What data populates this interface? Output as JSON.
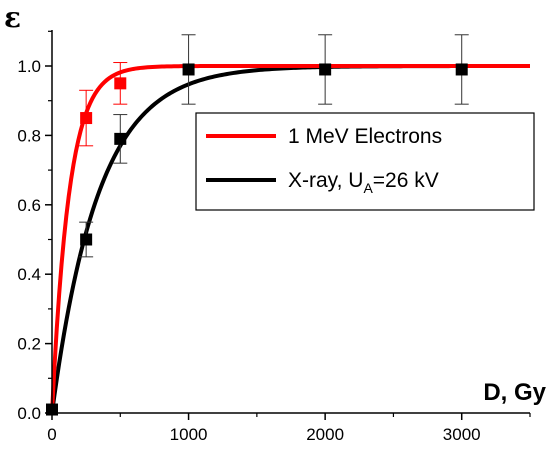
{
  "chart_data": {
    "type": "scatter",
    "xlabel": "D, Gy",
    "ylabel": "ε",
    "xlim": [
      0,
      3500
    ],
    "ylim": [
      0,
      1.1
    ],
    "x_ticks": [
      0,
      1000,
      2000,
      3000
    ],
    "x_minor_ticks": [
      500,
      1500,
      2500,
      3500
    ],
    "y_ticks": [
      0.0,
      0.2,
      0.4,
      0.6,
      0.8,
      1.0
    ],
    "y_tick_labels": [
      "0.0",
      "0.2",
      "0.4",
      "0.6",
      "0.8",
      "1.0"
    ],
    "x_tick_labels": [
      "0",
      "1000",
      "2000",
      "3000"
    ],
    "legend_position": "right",
    "grid": false,
    "series": [
      {
        "name": "1 MeV Electrons",
        "color": "#ff0000",
        "points": [
          {
            "x": 250,
            "y": 0.85,
            "err": 0.08
          },
          {
            "x": 500,
            "y": 0.95,
            "err": 0.06
          }
        ],
        "fit_saturation_dose": 125
      },
      {
        "name": "X-ray, U",
        "name_sub": "A",
        "name_suffix": "=26 kV",
        "color": "#000000",
        "points": [
          {
            "x": 0,
            "y": 0.01,
            "err": 0
          },
          {
            "x": 250,
            "y": 0.5,
            "err": 0.05
          },
          {
            "x": 500,
            "y": 0.79,
            "err": 0.07
          },
          {
            "x": 1000,
            "y": 0.99,
            "err": 0.1
          },
          {
            "x": 2000,
            "y": 0.99,
            "err": 0.1
          },
          {
            "x": 3000,
            "y": 0.99,
            "err": 0.1
          }
        ],
        "fit_saturation_dose": 340
      }
    ]
  }
}
